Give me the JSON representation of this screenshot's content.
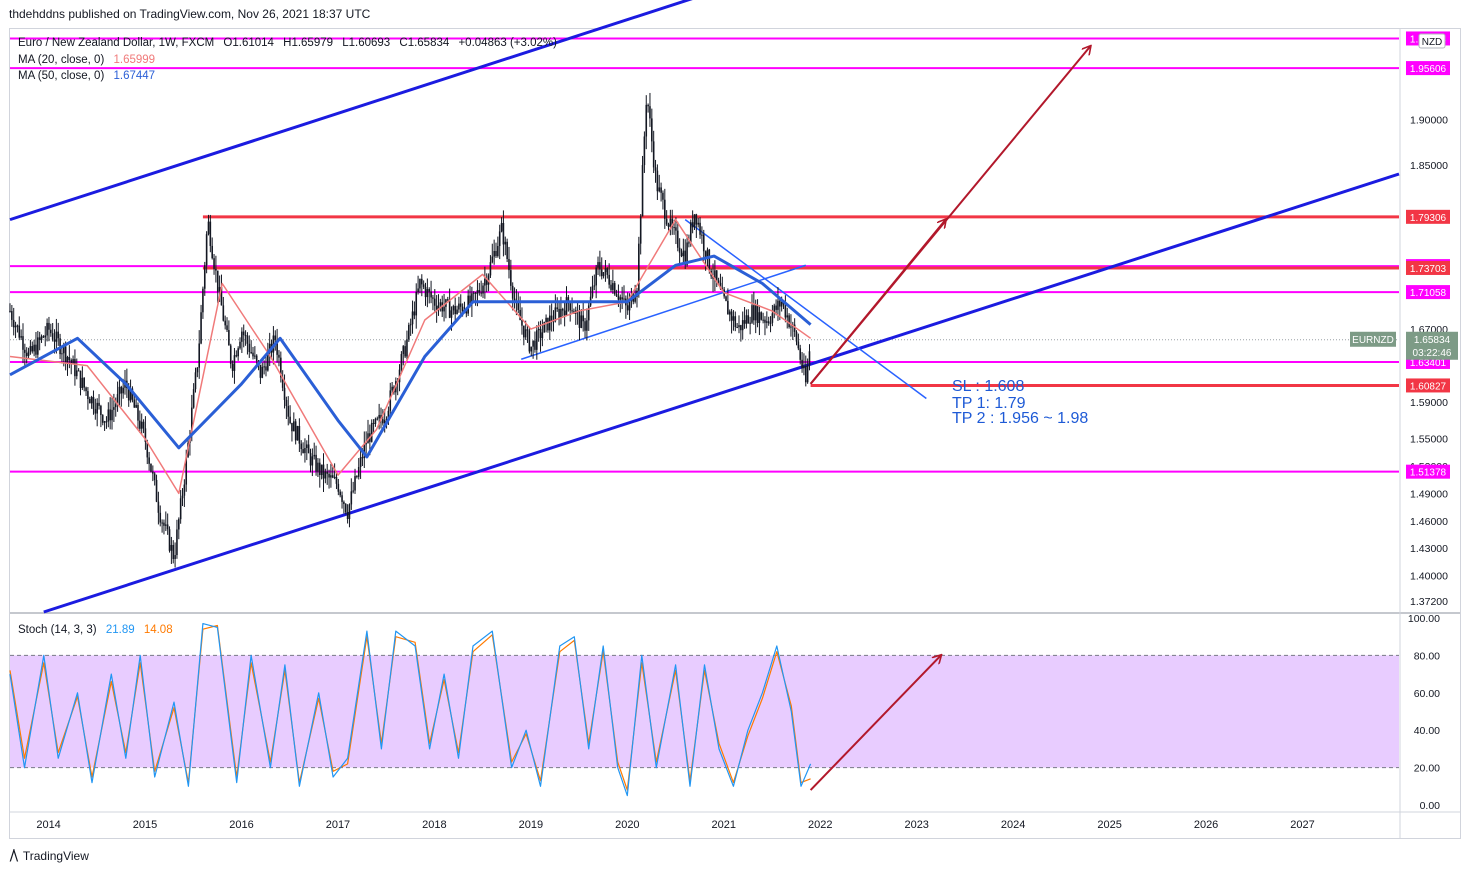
{
  "header": {
    "publisher_line": "thdehddns published on TradingView.com, Nov 26, 2021 18:37 UTC"
  },
  "legend": {
    "symbol": "Euro / New Zealand Dollar, 1W, FXCM",
    "open": "O1.61014",
    "high": "H1.65979",
    "low": "L1.60693",
    "close": "C1.65834",
    "change": "+0.04863 (+3.02%)",
    "ma20_label": "MA (20, close, 0)",
    "ma20_value": "1.65999",
    "ma50_label": "MA (50, close, 0)",
    "ma50_value": "1.67447",
    "stoch_label": "Stoch (14, 3, 3)",
    "stoch_k": "21.89",
    "stoch_d": "14.08"
  },
  "currency_badge": "NZD",
  "annotation": {
    "sl": "SL : 1.608",
    "tp1": "TP 1: 1.79",
    "tp2": "TP 2 : 1.956 ~ 1.98"
  },
  "footer": {
    "brand": "TradingView",
    "logo_icon": "tradingview-logo-icon"
  },
  "colors": {
    "candle": "#131722",
    "ma20": "#f07a7a",
    "ma50": "#2a5fd6",
    "channel": "#1b1be0",
    "magenta": "#ff00ff",
    "red_level": "#f23645",
    "arrow": "#b2182b",
    "stoch_k": "#2196f3",
    "stoch_d": "#ff7a00",
    "stoch_band": "#e8ccff",
    "price_tag": "#7d9b86"
  },
  "chart_data": [
    {
      "type": "candlestick",
      "timeframe": "1W",
      "xlabel": "",
      "ylabel": "",
      "x_tick_labels": [
        "2014",
        "2015",
        "2016",
        "2017",
        "2018",
        "2019",
        "2020",
        "2021",
        "2022",
        "2023",
        "2024",
        "2025",
        "2026",
        "2027"
      ],
      "x_range": [
        2013.6,
        2028.0
      ],
      "y_tick_labels": [
        "1.37200",
        "1.40000",
        "1.43000",
        "1.46000",
        "1.49000",
        "1.52000",
        "1.55000",
        "1.59000",
        "1.67000",
        "1.85000",
        "1.90000"
      ],
      "y_range": [
        1.36,
        2.0
      ],
      "current_price": {
        "label": "EURNZD",
        "value": "1.65834",
        "countdown": "03:22:46"
      },
      "price_series_approx": [
        {
          "t": 2013.6,
          "c": 1.69
        },
        {
          "t": 2013.8,
          "c": 1.64
        },
        {
          "t": 2014.0,
          "c": 1.67
        },
        {
          "t": 2014.2,
          "c": 1.64
        },
        {
          "t": 2014.4,
          "c": 1.6
        },
        {
          "t": 2014.6,
          "c": 1.57
        },
        {
          "t": 2014.8,
          "c": 1.61
        },
        {
          "t": 2015.0,
          "c": 1.55
        },
        {
          "t": 2015.15,
          "c": 1.47
        },
        {
          "t": 2015.3,
          "c": 1.42
        },
        {
          "t": 2015.4,
          "c": 1.5
        },
        {
          "t": 2015.55,
          "c": 1.64
        },
        {
          "t": 2015.65,
          "c": 1.79
        },
        {
          "t": 2015.75,
          "c": 1.72
        },
        {
          "t": 2015.9,
          "c": 1.63
        },
        {
          "t": 2016.0,
          "c": 1.67
        },
        {
          "t": 2016.2,
          "c": 1.62
        },
        {
          "t": 2016.35,
          "c": 1.66
        },
        {
          "t": 2016.5,
          "c": 1.57
        },
        {
          "t": 2016.7,
          "c": 1.53
        },
        {
          "t": 2016.85,
          "c": 1.51
        },
        {
          "t": 2017.0,
          "c": 1.5
        },
        {
          "t": 2017.1,
          "c": 1.47
        },
        {
          "t": 2017.3,
          "c": 1.55
        },
        {
          "t": 2017.5,
          "c": 1.58
        },
        {
          "t": 2017.7,
          "c": 1.65
        },
        {
          "t": 2017.85,
          "c": 1.72
        },
        {
          "t": 2018.0,
          "c": 1.7
        },
        {
          "t": 2018.2,
          "c": 1.69
        },
        {
          "t": 2018.4,
          "c": 1.7
        },
        {
          "t": 2018.55,
          "c": 1.73
        },
        {
          "t": 2018.7,
          "c": 1.78
        },
        {
          "t": 2018.85,
          "c": 1.69
        },
        {
          "t": 2019.0,
          "c": 1.65
        },
        {
          "t": 2019.2,
          "c": 1.68
        },
        {
          "t": 2019.4,
          "c": 1.7
        },
        {
          "t": 2019.55,
          "c": 1.67
        },
        {
          "t": 2019.7,
          "c": 1.74
        },
        {
          "t": 2019.85,
          "c": 1.72
        },
        {
          "t": 2020.0,
          "c": 1.69
        },
        {
          "t": 2020.1,
          "c": 1.72
        },
        {
          "t": 2020.2,
          "c": 1.93
        },
        {
          "t": 2020.3,
          "c": 1.83
        },
        {
          "t": 2020.45,
          "c": 1.78
        },
        {
          "t": 2020.6,
          "c": 1.75
        },
        {
          "t": 2020.7,
          "c": 1.8
        },
        {
          "t": 2020.85,
          "c": 1.74
        },
        {
          "t": 2021.0,
          "c": 1.7
        },
        {
          "t": 2021.15,
          "c": 1.67
        },
        {
          "t": 2021.3,
          "c": 1.69
        },
        {
          "t": 2021.45,
          "c": 1.68
        },
        {
          "t": 2021.6,
          "c": 1.7
        },
        {
          "t": 2021.75,
          "c": 1.66
        },
        {
          "t": 2021.85,
          "c": 1.61
        },
        {
          "t": 2021.9,
          "c": 1.658
        }
      ],
      "ma20_approx": [
        {
          "t": 2013.6,
          "v": 1.64
        },
        {
          "t": 2014.4,
          "v": 1.63
        },
        {
          "t": 2015.0,
          "v": 1.55
        },
        {
          "t": 2015.35,
          "v": 1.49
        },
        {
          "t": 2015.8,
          "v": 1.72
        },
        {
          "t": 2016.3,
          "v": 1.64
        },
        {
          "t": 2017.0,
          "v": 1.51
        },
        {
          "t": 2017.4,
          "v": 1.56
        },
        {
          "t": 2017.9,
          "v": 1.68
        },
        {
          "t": 2018.5,
          "v": 1.73
        },
        {
          "t": 2019.0,
          "v": 1.67
        },
        {
          "t": 2019.5,
          "v": 1.69
        },
        {
          "t": 2020.0,
          "v": 1.7
        },
        {
          "t": 2020.5,
          "v": 1.79
        },
        {
          "t": 2021.0,
          "v": 1.71
        },
        {
          "t": 2021.5,
          "v": 1.69
        },
        {
          "t": 2021.9,
          "v": 1.66
        }
      ],
      "ma50_approx": [
        {
          "t": 2013.6,
          "v": 1.62
        },
        {
          "t": 2014.3,
          "v": 1.66
        },
        {
          "t": 2014.8,
          "v": 1.61
        },
        {
          "t": 2015.35,
          "v": 1.54
        },
        {
          "t": 2016.0,
          "v": 1.61
        },
        {
          "t": 2016.4,
          "v": 1.66
        },
        {
          "t": 2017.0,
          "v": 1.57
        },
        {
          "t": 2017.3,
          "v": 1.53
        },
        {
          "t": 2017.9,
          "v": 1.64
        },
        {
          "t": 2018.4,
          "v": 1.7
        },
        {
          "t": 2019.0,
          "v": 1.7
        },
        {
          "t": 2019.5,
          "v": 1.7
        },
        {
          "t": 2020.0,
          "v": 1.7
        },
        {
          "t": 2020.5,
          "v": 1.74
        },
        {
          "t": 2020.9,
          "v": 1.75
        },
        {
          "t": 2021.4,
          "v": 1.72
        },
        {
          "t": 2021.9,
          "v": 1.675
        }
      ],
      "horizontal_levels": [
        {
          "value": "1.98853",
          "color": "magenta"
        },
        {
          "value": "1.95606",
          "color": "magenta"
        },
        {
          "value": "1.79306",
          "color": "red"
        },
        {
          "value": "1.73907",
          "color": "magenta"
        },
        {
          "value": "1.73703",
          "color": "red"
        },
        {
          "value": "1.71058",
          "color": "magenta"
        },
        {
          "value": "1.63401",
          "color": "magenta"
        },
        {
          "value": "1.60827",
          "color": "red"
        },
        {
          "value": "1.51378",
          "color": "magenta"
        }
      ],
      "trendlines": [
        {
          "name": "channel_upper",
          "from": [
            2013.6,
            1.79
          ],
          "to": [
            2020.9,
            2.04
          ]
        },
        {
          "name": "channel_lower",
          "from": [
            2013.95,
            1.36
          ],
          "to": [
            2028.0,
            1.84
          ]
        },
        {
          "name": "downtrend",
          "from": [
            2020.6,
            1.79
          ],
          "to": [
            2023.1,
            1.594
          ]
        },
        {
          "name": "wedge_support",
          "from": [
            2018.9,
            1.637
          ],
          "to": [
            2021.85,
            1.74
          ]
        }
      ],
      "arrows": [
        {
          "from": [
            2021.9,
            1.61
          ],
          "to": [
            2023.3,
            1.79
          ]
        },
        {
          "from": [
            2021.9,
            1.61
          ],
          "to": [
            2024.8,
            1.98
          ]
        }
      ]
    },
    {
      "type": "line",
      "name": "Stoch (14, 3, 3)",
      "xlabel": "",
      "ylabel": "",
      "y_tick_labels": [
        "0.00",
        "20.00",
        "40.00",
        "60.00",
        "80.00",
        "100.00"
      ],
      "y_range": [
        0,
        100
      ],
      "band": [
        20,
        80
      ],
      "k_approx": [
        {
          "t": 2013.6,
          "v": 70
        },
        {
          "t": 2013.75,
          "v": 20
        },
        {
          "t": 2013.95,
          "v": 80
        },
        {
          "t": 2014.1,
          "v": 25
        },
        {
          "t": 2014.3,
          "v": 60
        },
        {
          "t": 2014.45,
          "v": 12
        },
        {
          "t": 2014.65,
          "v": 70
        },
        {
          "t": 2014.8,
          "v": 25
        },
        {
          "t": 2014.95,
          "v": 80
        },
        {
          "t": 2015.1,
          "v": 15
        },
        {
          "t": 2015.3,
          "v": 55
        },
        {
          "t": 2015.45,
          "v": 10
        },
        {
          "t": 2015.6,
          "v": 97
        },
        {
          "t": 2015.75,
          "v": 95
        },
        {
          "t": 2015.95,
          "v": 12
        },
        {
          "t": 2016.1,
          "v": 80
        },
        {
          "t": 2016.3,
          "v": 20
        },
        {
          "t": 2016.45,
          "v": 75
        },
        {
          "t": 2016.6,
          "v": 10
        },
        {
          "t": 2016.8,
          "v": 60
        },
        {
          "t": 2016.95,
          "v": 15
        },
        {
          "t": 2017.1,
          "v": 25
        },
        {
          "t": 2017.3,
          "v": 93
        },
        {
          "t": 2017.45,
          "v": 30
        },
        {
          "t": 2017.6,
          "v": 93
        },
        {
          "t": 2017.8,
          "v": 85
        },
        {
          "t": 2017.95,
          "v": 30
        },
        {
          "t": 2018.1,
          "v": 70
        },
        {
          "t": 2018.25,
          "v": 25
        },
        {
          "t": 2018.4,
          "v": 85
        },
        {
          "t": 2018.6,
          "v": 93
        },
        {
          "t": 2018.8,
          "v": 20
        },
        {
          "t": 2018.95,
          "v": 40
        },
        {
          "t": 2019.1,
          "v": 10
        },
        {
          "t": 2019.3,
          "v": 85
        },
        {
          "t": 2019.45,
          "v": 90
        },
        {
          "t": 2019.6,
          "v": 30
        },
        {
          "t": 2019.75,
          "v": 85
        },
        {
          "t": 2019.9,
          "v": 20
        },
        {
          "t": 2020.0,
          "v": 5
        },
        {
          "t": 2020.15,
          "v": 80
        },
        {
          "t": 2020.3,
          "v": 20
        },
        {
          "t": 2020.5,
          "v": 75
        },
        {
          "t": 2020.65,
          "v": 10
        },
        {
          "t": 2020.8,
          "v": 75
        },
        {
          "t": 2020.95,
          "v": 30
        },
        {
          "t": 2021.1,
          "v": 10
        },
        {
          "t": 2021.25,
          "v": 40
        },
        {
          "t": 2021.4,
          "v": 60
        },
        {
          "t": 2021.55,
          "v": 85
        },
        {
          "t": 2021.7,
          "v": 50
        },
        {
          "t": 2021.8,
          "v": 10
        },
        {
          "t": 2021.9,
          "v": 22
        }
      ],
      "d_approx": [
        {
          "t": 2013.6,
          "v": 72
        },
        {
          "t": 2013.75,
          "v": 25
        },
        {
          "t": 2013.95,
          "v": 76
        },
        {
          "t": 2014.1,
          "v": 28
        },
        {
          "t": 2014.3,
          "v": 58
        },
        {
          "t": 2014.45,
          "v": 15
        },
        {
          "t": 2014.65,
          "v": 66
        },
        {
          "t": 2014.8,
          "v": 28
        },
        {
          "t": 2014.95,
          "v": 76
        },
        {
          "t": 2015.1,
          "v": 18
        },
        {
          "t": 2015.3,
          "v": 52
        },
        {
          "t": 2015.45,
          "v": 12
        },
        {
          "t": 2015.6,
          "v": 94
        },
        {
          "t": 2015.75,
          "v": 96
        },
        {
          "t": 2015.95,
          "v": 15
        },
        {
          "t": 2016.1,
          "v": 76
        },
        {
          "t": 2016.3,
          "v": 23
        },
        {
          "t": 2016.45,
          "v": 72
        },
        {
          "t": 2016.6,
          "v": 12
        },
        {
          "t": 2016.8,
          "v": 57
        },
        {
          "t": 2016.95,
          "v": 18
        },
        {
          "t": 2017.1,
          "v": 22
        },
        {
          "t": 2017.3,
          "v": 90
        },
        {
          "t": 2017.45,
          "v": 33
        },
        {
          "t": 2017.6,
          "v": 90
        },
        {
          "t": 2017.8,
          "v": 87
        },
        {
          "t": 2017.95,
          "v": 33
        },
        {
          "t": 2018.1,
          "v": 67
        },
        {
          "t": 2018.25,
          "v": 28
        },
        {
          "t": 2018.4,
          "v": 82
        },
        {
          "t": 2018.6,
          "v": 91
        },
        {
          "t": 2018.8,
          "v": 23
        },
        {
          "t": 2018.95,
          "v": 38
        },
        {
          "t": 2019.1,
          "v": 13
        },
        {
          "t": 2019.3,
          "v": 82
        },
        {
          "t": 2019.45,
          "v": 88
        },
        {
          "t": 2019.6,
          "v": 33
        },
        {
          "t": 2019.75,
          "v": 82
        },
        {
          "t": 2019.9,
          "v": 23
        },
        {
          "t": 2020.0,
          "v": 8
        },
        {
          "t": 2020.15,
          "v": 76
        },
        {
          "t": 2020.3,
          "v": 23
        },
        {
          "t": 2020.5,
          "v": 72
        },
        {
          "t": 2020.65,
          "v": 13
        },
        {
          "t": 2020.8,
          "v": 72
        },
        {
          "t": 2020.95,
          "v": 33
        },
        {
          "t": 2021.1,
          "v": 12
        },
        {
          "t": 2021.25,
          "v": 37
        },
        {
          "t": 2021.4,
          "v": 57
        },
        {
          "t": 2021.55,
          "v": 82
        },
        {
          "t": 2021.7,
          "v": 53
        },
        {
          "t": 2021.8,
          "v": 12
        },
        {
          "t": 2021.9,
          "v": 14
        }
      ],
      "arrow": {
        "from": [
          2021.9,
          8
        ],
        "to": [
          2023.25,
          80
        ]
      }
    }
  ]
}
